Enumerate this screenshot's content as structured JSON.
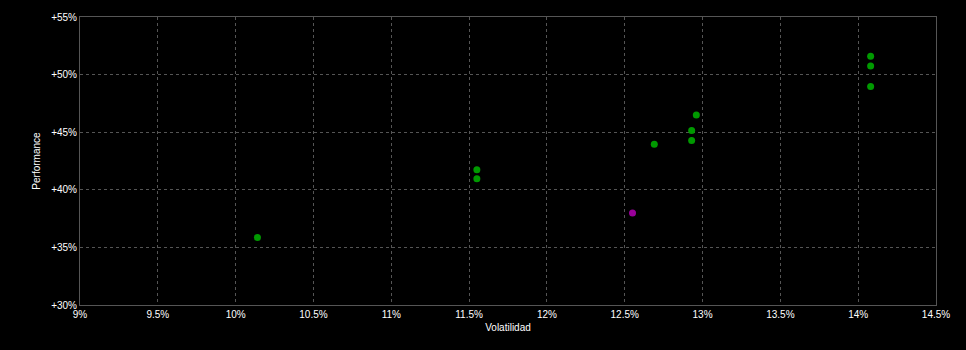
{
  "chart_data": {
    "type": "scatter",
    "x_label": "Volatilidad",
    "y_label": "Performance",
    "x": [
      10.14,
      11.55,
      11.55,
      12.55,
      12.69,
      12.96,
      12.93,
      12.93,
      14.08,
      14.08,
      14.08
    ],
    "values": [
      35.87,
      41.73,
      40.97,
      37.99,
      43.95,
      46.5,
      45.14,
      44.29,
      51.6,
      50.75,
      48.96
    ],
    "colors": [
      "#009900",
      "#009900",
      "#009900",
      "#990099",
      "#009900",
      "#009900",
      "#009900",
      "#009900",
      "#009900",
      "#009900",
      "#009900"
    ],
    "xlim": [
      9,
      14.5
    ],
    "xticks": [
      {
        "value": 9,
        "label": "9%"
      },
      {
        "value": 9.5,
        "label": "9.5%"
      },
      {
        "value": 10,
        "label": "10%"
      },
      {
        "value": 10.5,
        "label": "10.5%"
      },
      {
        "value": 11,
        "label": "11%"
      },
      {
        "value": 11.5,
        "label": "11.5%"
      },
      {
        "value": 12,
        "label": "12%"
      },
      {
        "value": 12.5,
        "label": "12.5%"
      },
      {
        "value": 13,
        "label": "13%"
      },
      {
        "value": 13.5,
        "label": "13.5%"
      },
      {
        "value": 14,
        "label": "14%"
      },
      {
        "value": 14.5,
        "label": "14.5%"
      }
    ],
    "ylim": [
      30,
      55
    ],
    "yticks": [
      {
        "value": 30,
        "label": "+30%"
      },
      {
        "value": 35,
        "label": "+35%"
      },
      {
        "value": 40,
        "label": "+40%"
      },
      {
        "value": 45,
        "label": "+45%"
      },
      {
        "value": 50,
        "label": "+50%"
      },
      {
        "value": 55,
        "label": "+55%"
      }
    ],
    "grid": true,
    "marker": "circle"
  }
}
